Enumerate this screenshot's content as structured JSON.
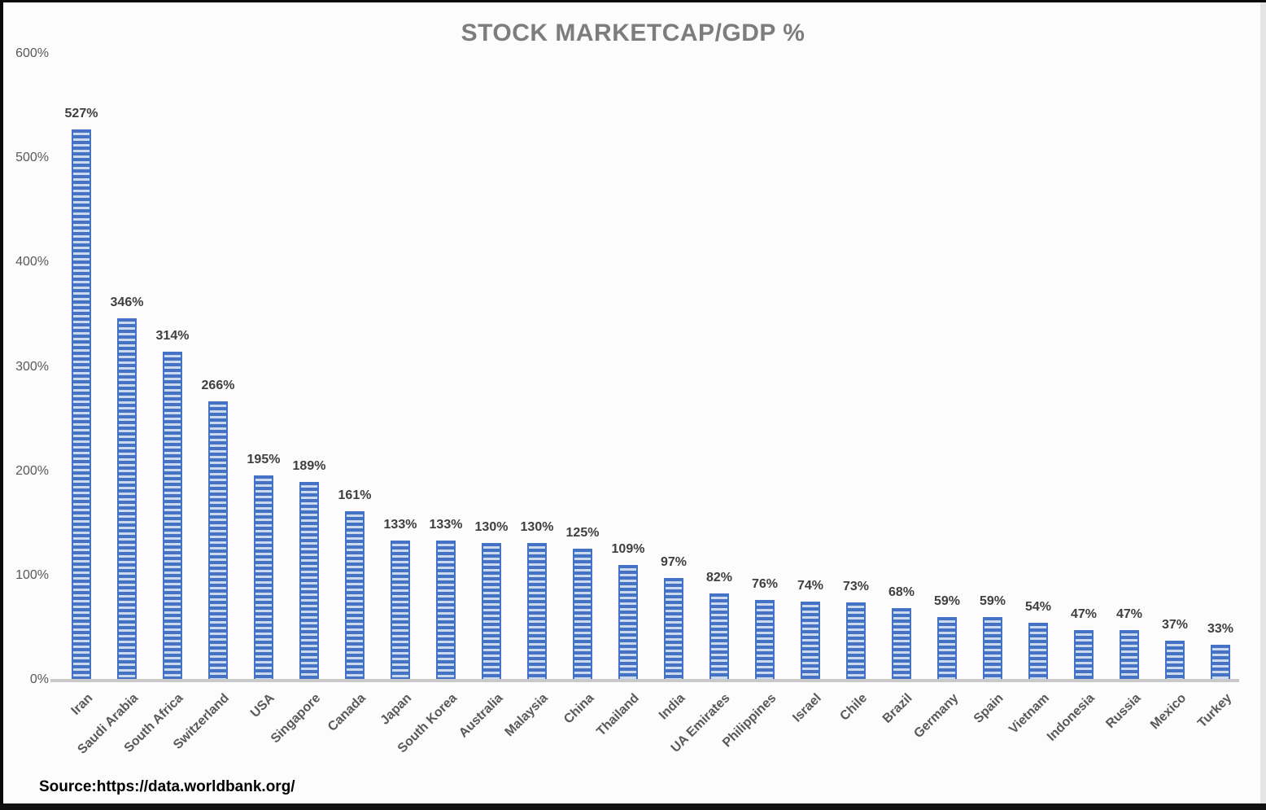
{
  "chart_data": {
    "type": "bar",
    "title": "STOCK MARKETCAP/GDP %",
    "categories": [
      "Iran",
      "Saudi Arabia",
      "South Africa",
      "Switzerland",
      "USA",
      "Singapore",
      "Canada",
      "Japan",
      "South Korea",
      "Australia",
      "Malaysia",
      "China",
      "Thailand",
      "India",
      "UA Emirates",
      "Philippines",
      "Israel",
      "Chile",
      "Brazil",
      "Germany",
      "Spain",
      "Vietnam",
      "Indonesia",
      "Russia",
      "Mexico",
      "Turkey"
    ],
    "values": [
      527,
      346,
      314,
      266,
      195,
      189,
      161,
      133,
      133,
      130,
      130,
      125,
      109,
      97,
      82,
      76,
      74,
      73,
      68,
      59,
      59,
      54,
      47,
      47,
      37,
      33
    ],
    "data_label_suffix": "%",
    "xlabel": "",
    "ylabel": "",
    "ylim": [
      0,
      600
    ],
    "yticks": [
      0,
      100,
      200,
      300,
      400,
      500,
      600
    ],
    "ytick_suffix": "%",
    "grid": false,
    "legend": "none",
    "bar_color": "#4472c4",
    "bar_stripe_color": "#cdd9ee",
    "axis_line_color": "#c9c9c9",
    "title_color": "#7d7d7d",
    "label_color": "#595959"
  },
  "source": {
    "label": "Source:https://data.worldbank.org/"
  }
}
